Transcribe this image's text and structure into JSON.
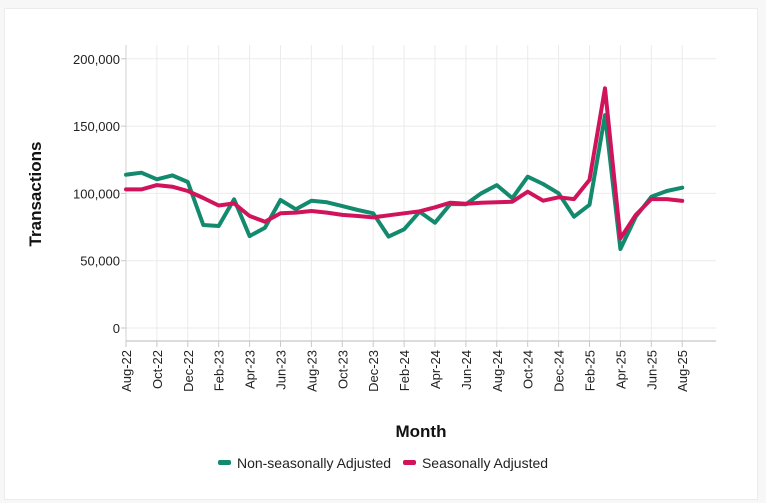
{
  "chart_data": {
    "type": "line",
    "title": "",
    "xlabel": "Month",
    "ylabel": "Transactions",
    "ylim": [
      0,
      200000
    ],
    "yticks": [
      0,
      50000,
      100000,
      150000,
      200000
    ],
    "ytick_labels": [
      "0",
      "50,000",
      "100,000",
      "150,000",
      "200,000"
    ],
    "grid": true,
    "legend_position": "bottom",
    "x": [
      "Aug-22",
      "Sep-22",
      "Oct-22",
      "Nov-22",
      "Dec-22",
      "Jan-23",
      "Feb-23",
      "Mar-23",
      "Apr-23",
      "May-23",
      "Jun-23",
      "Jul-23",
      "Aug-23",
      "Sep-23",
      "Oct-23",
      "Nov-23",
      "Dec-23",
      "Jan-24",
      "Feb-24",
      "Mar-24",
      "Apr-24",
      "May-24",
      "Jun-24",
      "Jul-24",
      "Aug-24",
      "Sep-24",
      "Oct-24",
      "Nov-24",
      "Dec-24",
      "Jan-25",
      "Feb-25",
      "Mar-25",
      "Apr-25",
      "May-25",
      "Jun-25",
      "Jul-25",
      "Aug-25"
    ],
    "xtick_labels": [
      "Aug-22",
      "Oct-22",
      "Dec-22",
      "Feb-23",
      "Apr-23",
      "Jun-23",
      "Aug-23",
      "Oct-23",
      "Dec-23",
      "Feb-24",
      "Apr-24",
      "Jun-24",
      "Aug-24",
      "Oct-24",
      "Dec-24",
      "Feb-25",
      "Apr-25",
      "Jun-25",
      "Aug-25"
    ],
    "series": [
      {
        "name": "Non-seasonally Adjusted",
        "color": "#138a6e",
        "values": [
          113900,
          115400,
          110500,
          113400,
          108500,
          76500,
          75800,
          95600,
          68300,
          74500,
          95100,
          88200,
          94600,
          93400,
          90600,
          87700,
          85200,
          67900,
          73300,
          86400,
          78200,
          92100,
          91900,
          100100,
          106200,
          96400,
          112400,
          107000,
          100100,
          82700,
          91500,
          158200,
          58700,
          82700,
          97500,
          101800,
          104200
        ]
      },
      {
        "name": "Seasonally Adjusted",
        "color": "#d0135a",
        "values": [
          103000,
          103000,
          106200,
          105000,
          101800,
          96600,
          91000,
          92600,
          83200,
          79000,
          85200,
          85700,
          86900,
          85700,
          84000,
          83200,
          82200,
          83700,
          85200,
          86700,
          89700,
          93100,
          92300,
          93100,
          93400,
          93800,
          101300,
          94600,
          97100,
          95800,
          110000,
          178100,
          66600,
          84000,
          95800,
          95800,
          94400
        ]
      }
    ]
  }
}
